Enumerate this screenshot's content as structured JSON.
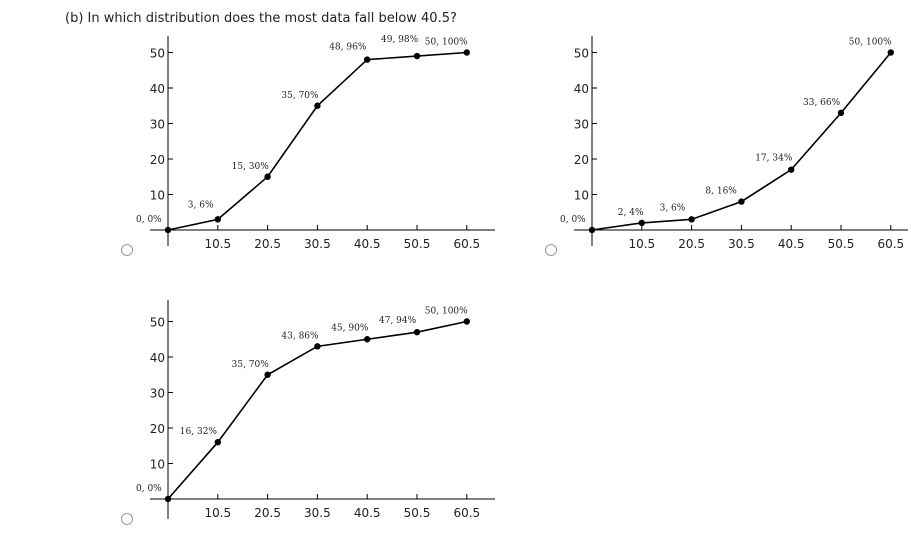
{
  "question": "(b) In which distribution does the most data fall below 40.5?",
  "options": [
    {
      "id": "a",
      "selected": false
    },
    {
      "id": "b",
      "selected": false
    },
    {
      "id": "c",
      "selected": false
    }
  ],
  "chart_data": [
    {
      "type": "line",
      "x_ticks": [
        "10.5",
        "20.5",
        "30.5",
        "40.5",
        "50.5",
        "60.5"
      ],
      "y_ticks": [
        "10",
        "20",
        "30",
        "40",
        "50"
      ],
      "ylim": [
        0,
        50
      ],
      "x": [
        0.5,
        10.5,
        20.5,
        30.5,
        40.5,
        50.5,
        60.5
      ],
      "y": [
        0,
        3,
        15,
        35,
        48,
        49,
        50
      ],
      "labels": [
        "0, 0%",
        "3, 6%",
        "15, 30%",
        "35, 70%",
        "48, 96%",
        "49, 98%",
        "50, 100%"
      ]
    },
    {
      "type": "line",
      "x_ticks": [
        "10.5",
        "20.5",
        "30.5",
        "40.5",
        "50.5",
        "60.5"
      ],
      "y_ticks": [
        "10",
        "20",
        "30",
        "40",
        "50"
      ],
      "ylim": [
        0,
        50
      ],
      "x": [
        0.5,
        10.5,
        20.5,
        30.5,
        40.5,
        50.5,
        60.5
      ],
      "y": [
        0,
        2,
        3,
        8,
        17,
        33,
        50
      ],
      "labels": [
        "0, 0%",
        "2, 4%",
        "3, 6%",
        "8, 16%",
        "17, 34%",
        "33, 66%",
        "50, 100%"
      ]
    },
    {
      "type": "line",
      "x_ticks": [
        "10.5",
        "20.5",
        "30.5",
        "40.5",
        "50.5",
        "60.5"
      ],
      "y_ticks": [
        "10",
        "20",
        "30",
        "40",
        "50"
      ],
      "ylim": [
        0,
        50
      ],
      "x": [
        0.5,
        10.5,
        20.5,
        30.5,
        40.5,
        50.5,
        60.5
      ],
      "y": [
        0,
        16,
        35,
        43,
        45,
        47,
        50
      ],
      "labels": [
        "0, 0%",
        "16, 32%",
        "35, 70%",
        "43, 86%",
        "45, 90%",
        "47, 94%",
        "50, 100%"
      ]
    }
  ]
}
